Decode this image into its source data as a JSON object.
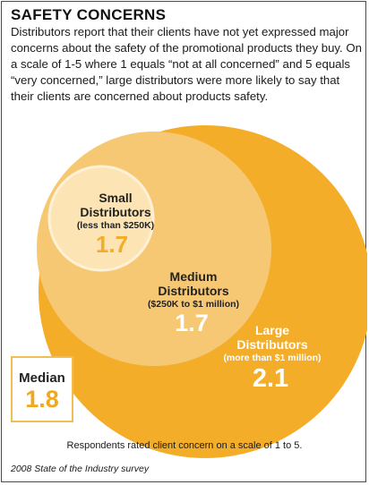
{
  "title": "SAFETY CONCERNS",
  "intro": "Distributors report that their clients have not yet expressed major concerns about the safety of the promotional products they buy. On a scale of 1-5 where 1 equals “not at all concerned” and 5 equals “very concerned,” large distributors were more likely to say that their clients are concerned about products safety.",
  "chart_data": {
    "type": "bubble",
    "scale": [
      1,
      5
    ],
    "series": [
      {
        "name": "Large Distributors",
        "range": "(more than $1 million)",
        "value": 2.1,
        "color": "#f4ad28"
      },
      {
        "name": "Medium Distributors",
        "range": "($250K to $1 million)",
        "value": 1.7,
        "color": "#f7c873"
      },
      {
        "name": "Small Distributors",
        "range": "(less than $250K)",
        "value": 1.7,
        "color": "#fce4b4"
      }
    ],
    "median": {
      "label": "Median",
      "value": 1.8
    }
  },
  "footnote": "Respondents rated client concern on a scale of 1 to 5.",
  "source": "2008 State of the Industry survey"
}
